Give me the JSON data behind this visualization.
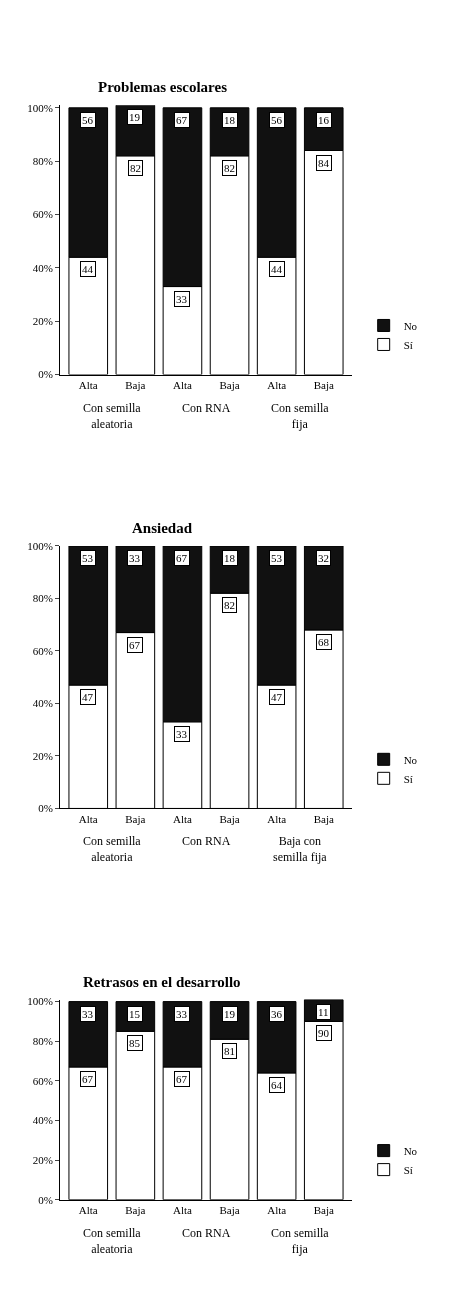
{
  "chart_data": [
    {
      "type": "bar",
      "title": "Problemas escolares",
      "categories": [
        "Alta",
        "Baja",
        "Alta",
        "Baja",
        "Alta",
        "Baja"
      ],
      "series": [
        {
          "name": "Sí",
          "color": "#ffffff",
          "values": [
            44,
            82,
            33,
            82,
            44,
            84
          ]
        },
        {
          "name": "No",
          "color": "#111111",
          "values": [
            56,
            19,
            67,
            18,
            56,
            16
          ]
        }
      ],
      "stacked": true,
      "ylim": [
        0,
        101
      ],
      "yticks": [
        {
          "value": 0,
          "label": "0%"
        },
        {
          "value": 20,
          "label": "20%"
        },
        {
          "value": 40,
          "label": "40%"
        },
        {
          "value": 60,
          "label": "60%"
        },
        {
          "value": 80,
          "label": "80%"
        },
        {
          "value": 100,
          "label": "100%"
        }
      ],
      "data_labels": true,
      "legend": "right",
      "annotations": [
        "Con semilla aleatoria",
        "Con RNA",
        "Con semilla fija"
      ]
    },
    {
      "type": "bar",
      "title": "Ansiedad",
      "categories": [
        "Alta",
        "Baja",
        "Alta",
        "Baja",
        "Alta",
        "Baja"
      ],
      "series": [
        {
          "name": "Sí",
          "color": "#ffffff",
          "values": [
            47,
            67,
            33,
            82,
            47,
            68
          ]
        },
        {
          "name": "No",
          "color": "#111111",
          "values": [
            53,
            33,
            67,
            18,
            53,
            32
          ]
        }
      ],
      "stacked": true,
      "ylim": [
        0,
        100
      ],
      "yticks": [
        {
          "value": 0,
          "label": "0%"
        },
        {
          "value": 20,
          "label": "20%"
        },
        {
          "value": 40,
          "label": "40%"
        },
        {
          "value": 60,
          "label": "60%"
        },
        {
          "value": 80,
          "label": "80%"
        },
        {
          "value": 100,
          "label": "100%"
        }
      ],
      "data_labels": true,
      "legend": "right",
      "annotations": [
        "Con semilla aleatoria",
        "Con RNA",
        "Baja con semilla fija"
      ]
    },
    {
      "type": "bar",
      "title": "Retrasos en el desarrollo",
      "categories": [
        "Alta",
        "Baja",
        "Alta",
        "Baja",
        "Alta",
        "Baja"
      ],
      "series": [
        {
          "name": "Sí",
          "color": "#ffffff",
          "values": [
            67,
            85,
            67,
            81,
            64,
            90
          ]
        },
        {
          "name": "No",
          "color": "#111111",
          "values": [
            33,
            15,
            33,
            19,
            36,
            11
          ]
        }
      ],
      "stacked": true,
      "ylim": [
        0,
        101
      ],
      "yticks": [
        {
          "value": 0,
          "label": "0%"
        },
        {
          "value": 20,
          "label": "20%"
        },
        {
          "value": 40,
          "label": "40%"
        },
        {
          "value": 60,
          "label": "60%"
        },
        {
          "value": 80,
          "label": "80%"
        },
        {
          "value": 100,
          "label": "100%"
        }
      ],
      "data_labels": true,
      "legend": "right",
      "annotations": [
        "Con semilla aleatoria",
        "Con RNA",
        "Con semilla fija"
      ]
    }
  ]
}
